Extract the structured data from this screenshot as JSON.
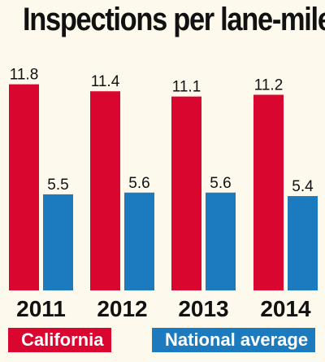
{
  "colors": {
    "california": "#d9072f",
    "national": "#1c7bbf",
    "background": "#fdf9ec",
    "text": "#111111"
  },
  "chart_data": {
    "type": "bar",
    "title": "Inspections per lane-mile",
    "categories": [
      "2011",
      "2012",
      "2013",
      "2014"
    ],
    "series": [
      {
        "name": "California",
        "values": [
          11.8,
          11.4,
          11.1,
          11.2
        ]
      },
      {
        "name": "National average",
        "values": [
          5.5,
          5.6,
          5.6,
          5.4
        ]
      }
    ],
    "value_labels": [
      [
        "11.8",
        "5.5"
      ],
      [
        "11.4",
        "5.6"
      ],
      [
        "11.1",
        "5.6"
      ],
      [
        "11.2",
        "5.4"
      ]
    ],
    "xlabel": "",
    "ylabel": "",
    "ylim": [
      0,
      12.9
    ],
    "grid": false,
    "legend_position": "bottom"
  }
}
